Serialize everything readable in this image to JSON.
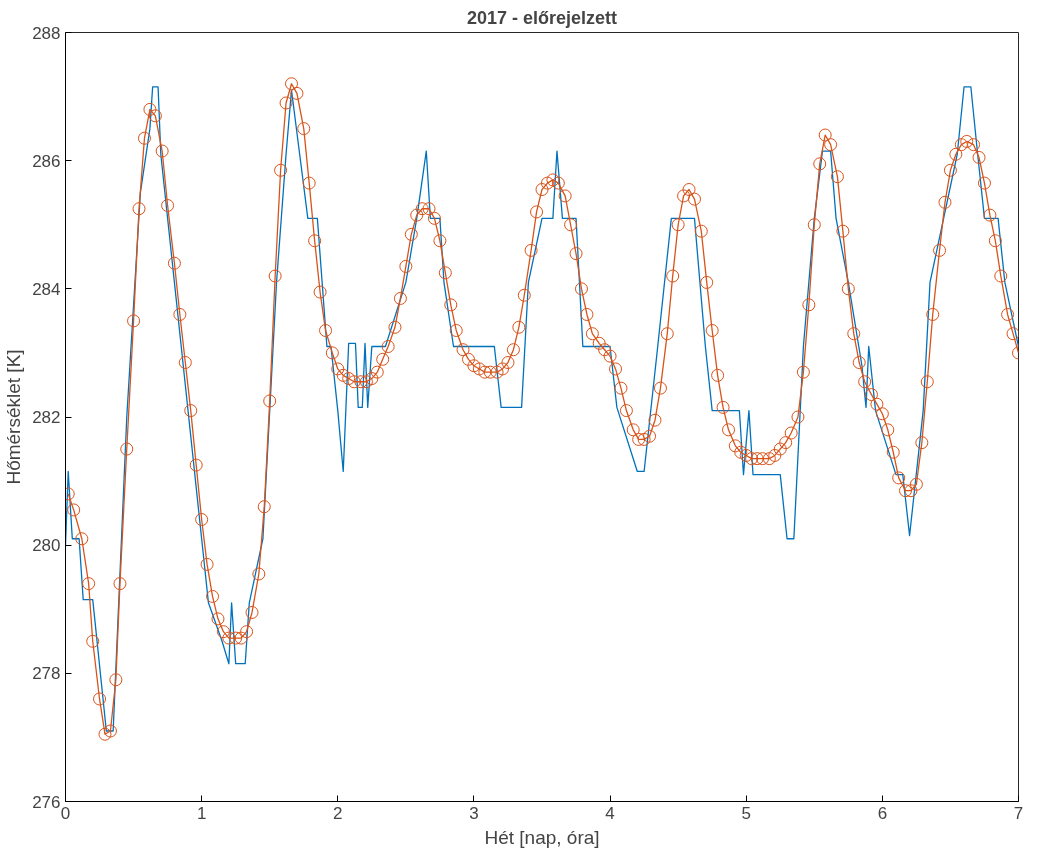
{
  "chart_data": {
    "type": "line",
    "title": "2017 - előrejelzett",
    "xlabel": "Hét [nap, óra]",
    "ylabel": "Hőmérséklet [K]",
    "xlim": [
      0,
      7
    ],
    "ylim": [
      276,
      288
    ],
    "xticks": [
      0,
      1,
      2,
      3,
      4,
      5,
      6,
      7
    ],
    "yticks": [
      276,
      278,
      280,
      282,
      284,
      286,
      288
    ],
    "grid": false,
    "series": [
      {
        "color": "#0072bd",
        "marker": "none",
        "x": [
          0,
          0.02,
          0.05,
          0.1,
          0.13,
          0.2,
          0.3,
          0.35,
          0.45,
          0.55,
          0.62,
          0.64,
          0.68,
          0.7,
          0.8,
          0.85,
          0.95,
          1.0,
          1.05,
          1.15,
          1.2,
          1.22,
          1.25,
          1.32,
          1.35,
          1.45,
          1.55,
          1.62,
          1.66,
          1.72,
          1.78,
          1.85,
          1.92,
          1.95,
          2.0,
          2.04,
          2.08,
          2.13,
          2.15,
          2.18,
          2.2,
          2.22,
          2.25,
          2.35,
          2.5,
          2.58,
          2.65,
          2.68,
          2.75,
          2.78,
          2.85,
          3.15,
          3.2,
          3.35,
          3.4,
          3.5,
          3.58,
          3.61,
          3.65,
          3.75,
          3.8,
          4.0,
          4.05,
          4.2,
          4.25,
          4.35,
          4.45,
          4.62,
          4.7,
          4.75,
          4.95,
          4.98,
          5.02,
          5.05,
          5.25,
          5.3,
          5.35,
          5.42,
          5.5,
          5.56,
          5.62,
          5.66,
          5.75,
          5.85,
          5.88,
          5.9,
          5.95,
          6.1,
          6.15,
          6.2,
          6.3,
          6.35,
          6.45,
          6.55,
          6.6,
          6.65,
          6.7,
          6.75,
          6.85,
          6.9,
          7.0
        ],
        "values": [
          280.0,
          281.15,
          280.1,
          280.1,
          279.15,
          279.15,
          277.1,
          277.1,
          282.0,
          285.5,
          286.5,
          287.15,
          287.15,
          286.1,
          284.1,
          283.1,
          281.1,
          280.1,
          279.1,
          278.5,
          278.15,
          279.1,
          278.15,
          278.15,
          279.1,
          280.1,
          284.1,
          286.1,
          287.1,
          286.1,
          285.1,
          285.1,
          283.1,
          283.1,
          282.1,
          281.15,
          283.15,
          283.15,
          282.15,
          282.15,
          283.15,
          282.15,
          283.1,
          283.1,
          284.1,
          285.1,
          286.15,
          285.1,
          285.1,
          284.1,
          283.1,
          283.1,
          282.15,
          282.15,
          284.1,
          285.1,
          285.1,
          286.15,
          285.1,
          285.1,
          283.1,
          283.1,
          282.15,
          281.15,
          281.15,
          283.1,
          285.1,
          285.1,
          283.1,
          282.1,
          282.1,
          281.1,
          282.1,
          281.1,
          281.1,
          280.1,
          280.1,
          283.1,
          285.1,
          286.15,
          286.15,
          285.1,
          284.1,
          282.8,
          282.15,
          283.1,
          282.1,
          281.1,
          281.1,
          280.15,
          282.1,
          284.1,
          285.1,
          286.1,
          287.15,
          287.15,
          286.1,
          285.1,
          285.1,
          284.1,
          283.1
        ]
      },
      {
        "color": "#d95319",
        "marker": "circle",
        "x": [
          0.02,
          0.06,
          0.12,
          0.17,
          0.2,
          0.25,
          0.29,
          0.33,
          0.37,
          0.4,
          0.45,
          0.5,
          0.54,
          0.58,
          0.62,
          0.66,
          0.71,
          0.75,
          0.8,
          0.84,
          0.88,
          0.92,
          0.96,
          1.0,
          1.04,
          1.08,
          1.12,
          1.16,
          1.2,
          1.25,
          1.29,
          1.33,
          1.37,
          1.42,
          1.46,
          1.5,
          1.54,
          1.58,
          1.62,
          1.66,
          1.7,
          1.75,
          1.79,
          1.83,
          1.87,
          1.91,
          1.96,
          2.0,
          2.04,
          2.08,
          2.12,
          2.17,
          2.21,
          2.25,
          2.29,
          2.33,
          2.37,
          2.42,
          2.46,
          2.5,
          2.54,
          2.58,
          2.62,
          2.67,
          2.71,
          2.75,
          2.79,
          2.83,
          2.87,
          2.92,
          2.96,
          3.0,
          3.04,
          3.08,
          3.12,
          3.17,
          3.21,
          3.25,
          3.29,
          3.33,
          3.37,
          3.42,
          3.46,
          3.5,
          3.54,
          3.58,
          3.62,
          3.67,
          3.71,
          3.75,
          3.79,
          3.83,
          3.87,
          3.92,
          3.96,
          4.0,
          4.04,
          4.08,
          4.12,
          4.17,
          4.21,
          4.25,
          4.29,
          4.33,
          4.37,
          4.42,
          4.46,
          4.5,
          4.54,
          4.58,
          4.62,
          4.67,
          4.71,
          4.75,
          4.79,
          4.83,
          4.87,
          4.92,
          4.96,
          5.0,
          5.04,
          5.08,
          5.12,
          5.17,
          5.21,
          5.25,
          5.29,
          5.33,
          5.38,
          5.42,
          5.46,
          5.5,
          5.54,
          5.58,
          5.62,
          5.67,
          5.71,
          5.75,
          5.79,
          5.83,
          5.87,
          5.92,
          5.96,
          6.0,
          6.04,
          6.08,
          6.12,
          6.17,
          6.21,
          6.25,
          6.29,
          6.33,
          6.37,
          6.42,
          6.46,
          6.5,
          6.54,
          6.58,
          6.62,
          6.67,
          6.71,
          6.75,
          6.79,
          6.83,
          6.87,
          6.92,
          6.96,
          7.0
        ],
        "values": [
          280.8,
          280.55,
          280.1,
          279.4,
          278.5,
          277.6,
          277.05,
          277.1,
          277.9,
          279.4,
          281.5,
          283.5,
          285.25,
          286.35,
          286.8,
          286.7,
          286.15,
          285.3,
          284.4,
          283.6,
          282.85,
          282.1,
          281.25,
          280.4,
          279.7,
          279.2,
          278.85,
          278.65,
          278.55,
          278.55,
          278.55,
          278.65,
          278.95,
          279.55,
          280.6,
          282.25,
          284.2,
          285.85,
          286.9,
          287.2,
          287.05,
          286.5,
          285.65,
          284.75,
          283.95,
          283.35,
          283.0,
          282.75,
          282.65,
          282.6,
          282.55,
          282.55,
          282.55,
          282.6,
          282.7,
          282.9,
          283.1,
          283.4,
          283.85,
          284.35,
          284.85,
          285.15,
          285.25,
          285.25,
          285.1,
          284.75,
          284.25,
          283.75,
          283.35,
          283.05,
          282.9,
          282.8,
          282.75,
          282.7,
          282.7,
          282.7,
          282.75,
          282.85,
          283.05,
          283.4,
          283.9,
          284.6,
          285.2,
          285.55,
          285.65,
          285.7,
          285.65,
          285.45,
          285.0,
          284.55,
          284.0,
          283.6,
          283.3,
          283.15,
          283.05,
          282.95,
          282.75,
          282.45,
          282.1,
          281.8,
          281.65,
          281.65,
          281.7,
          281.95,
          282.45,
          283.3,
          284.2,
          285.0,
          285.45,
          285.55,
          285.4,
          284.9,
          284.1,
          283.35,
          282.65,
          282.15,
          281.8,
          281.55,
          281.45,
          281.4,
          281.35,
          281.35,
          281.35,
          281.35,
          281.4,
          281.5,
          281.6,
          281.75,
          282.0,
          282.7,
          283.75,
          285.0,
          285.95,
          286.4,
          286.25,
          285.75,
          284.9,
          284.0,
          283.3,
          282.85,
          282.55,
          282.35,
          282.2,
          282.05,
          281.8,
          281.45,
          281.05,
          280.85,
          280.85,
          280.95,
          281.6,
          282.55,
          283.6,
          284.6,
          285.35,
          285.85,
          286.1,
          286.25,
          286.3,
          286.25,
          286.05,
          285.65,
          285.15,
          284.75,
          284.2,
          283.6,
          283.3,
          283.0
        ]
      }
    ]
  }
}
